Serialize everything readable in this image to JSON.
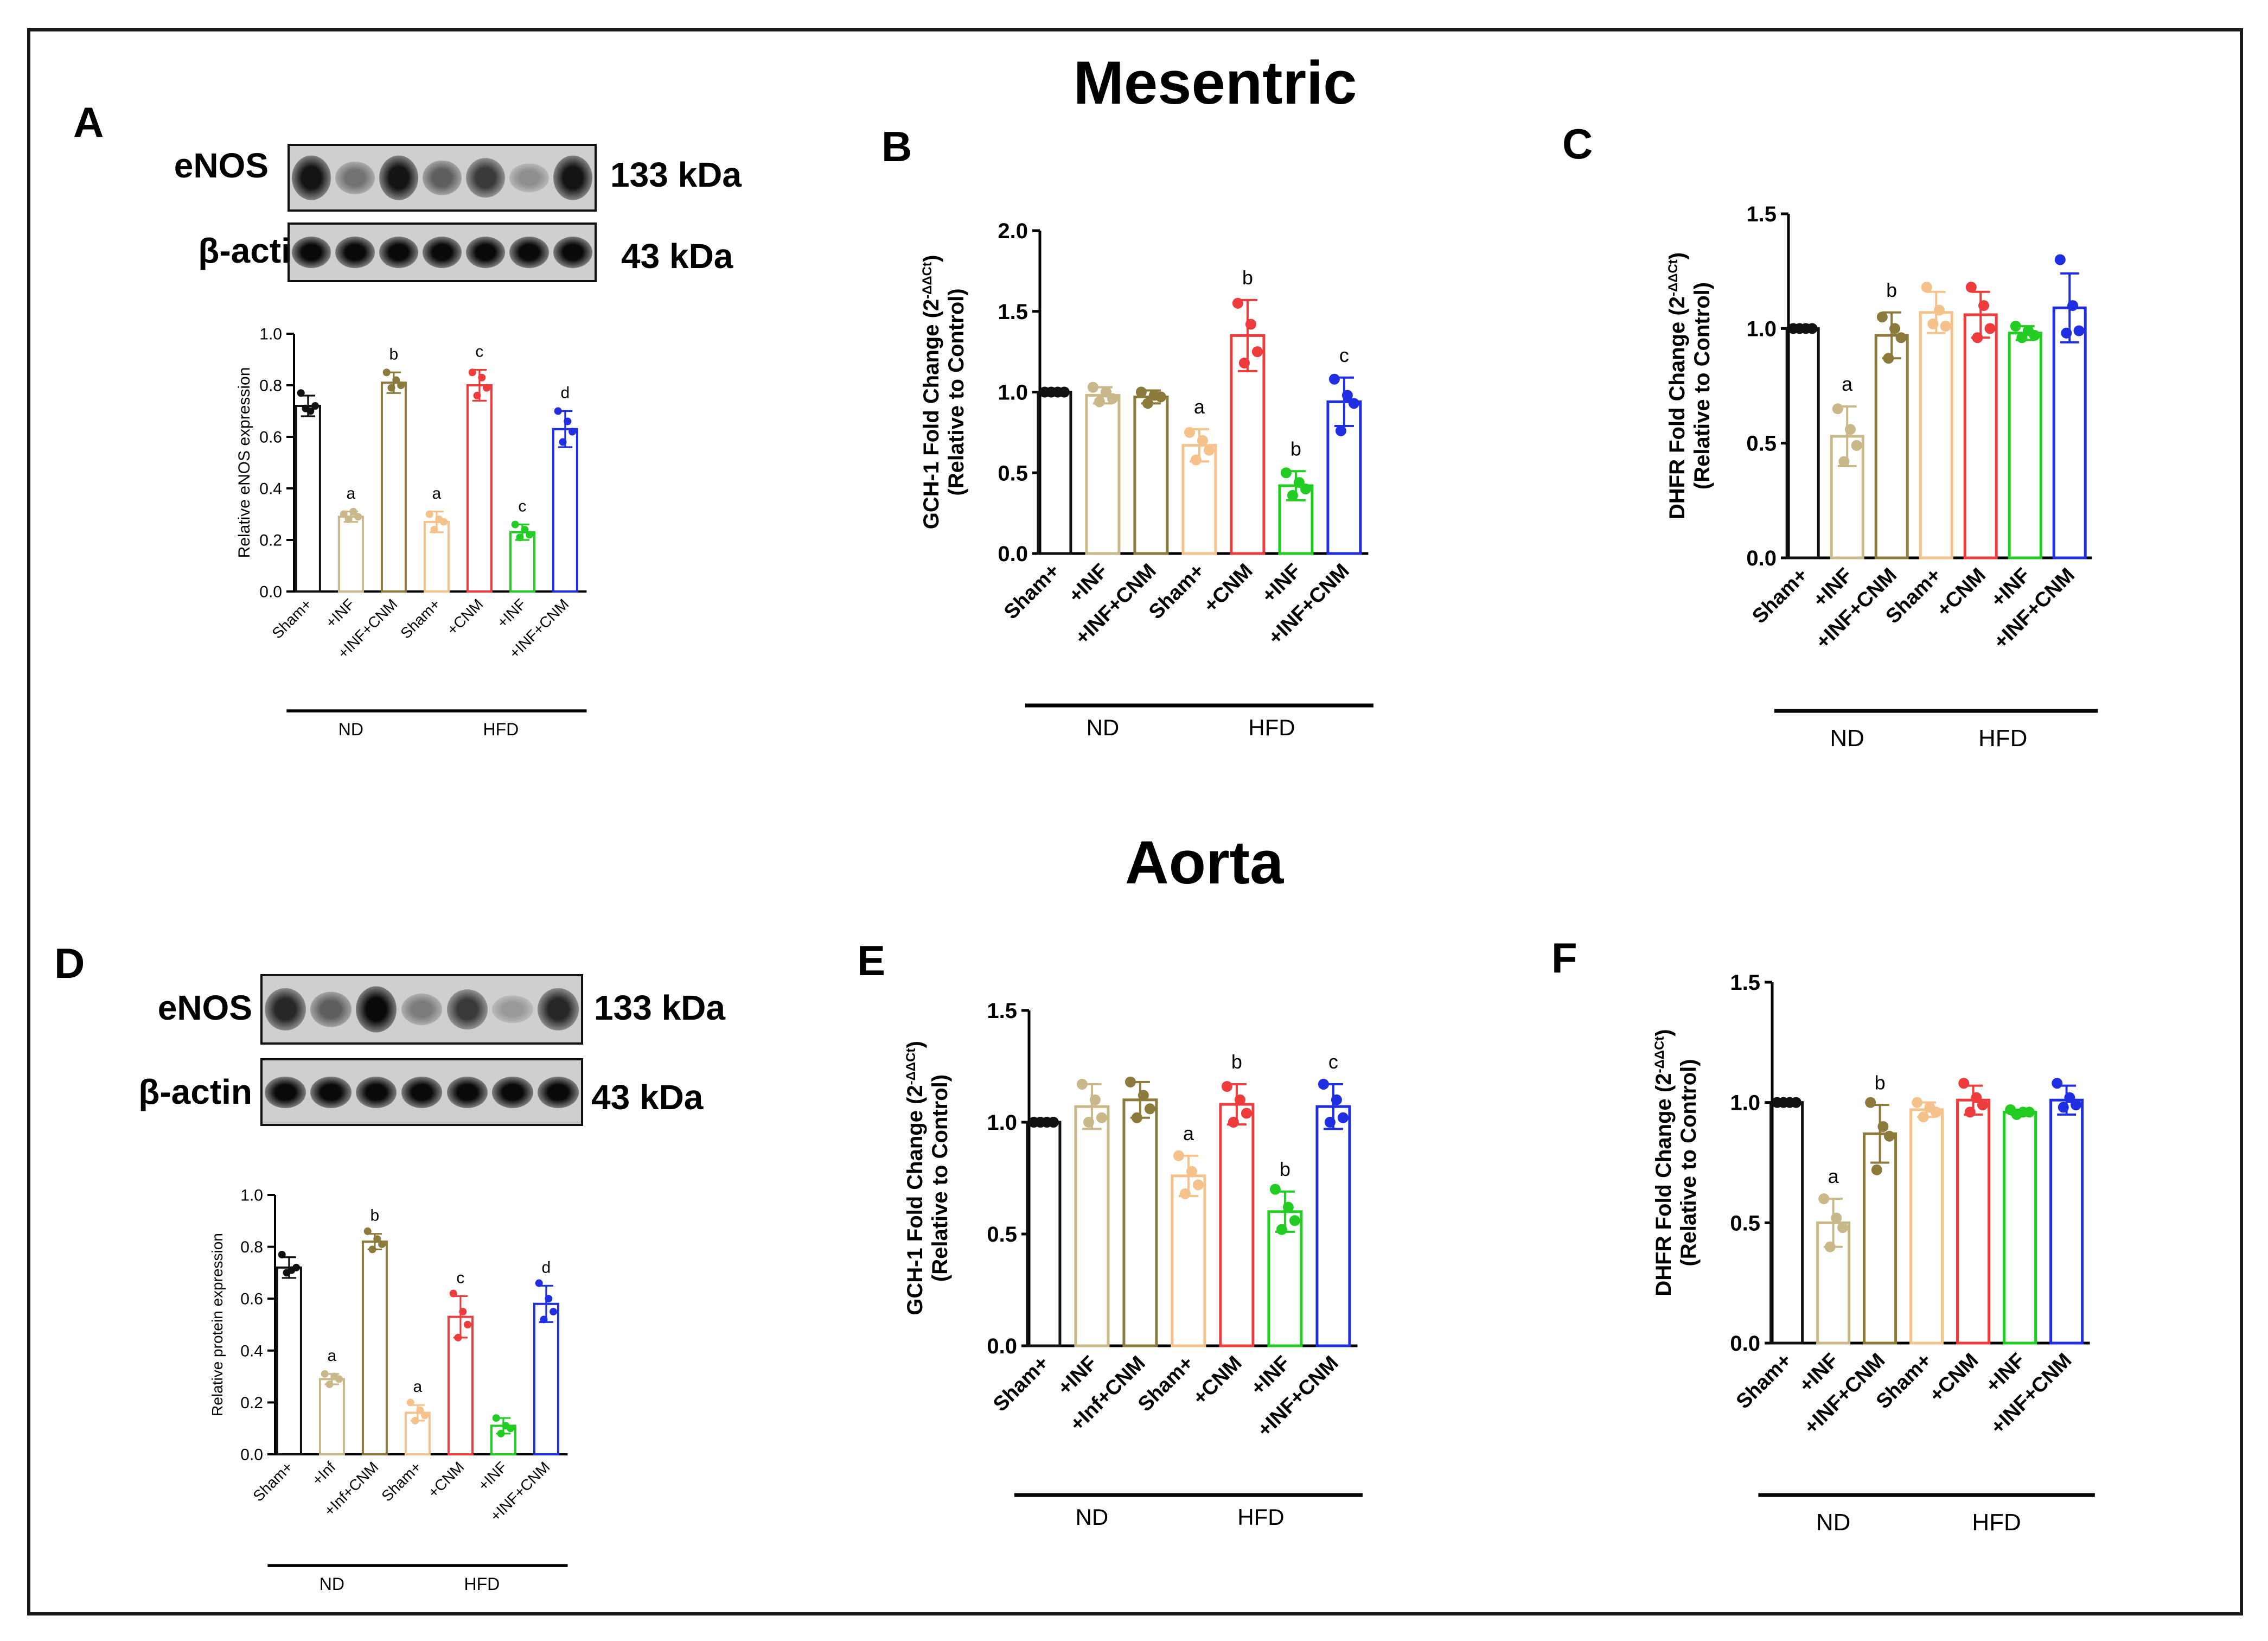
{
  "section_titles": {
    "mesenteric": "Mesentric",
    "aorta": "Aorta"
  },
  "panel_letters": {
    "A": "A",
    "B": "B",
    "C": "C",
    "D": "D",
    "E": "E",
    "F": "F"
  },
  "colors": [
    "#111111",
    "#c8b88a",
    "#8c7a3c",
    "#f5c28c",
    "#ee3b3b",
    "#22cc22",
    "#1e2ee0"
  ],
  "blots": {
    "A": {
      "label_top": "eNOS",
      "kda_top": "133 kDa",
      "label_bottom": "β-actin",
      "kda_bottom": "43 kDa",
      "enos_band_intensity": [
        0.95,
        0.45,
        0.95,
        0.55,
        0.75,
        0.3,
        0.95
      ]
    },
    "D": {
      "label_top": "eNOS",
      "kda_top": "133 kDa",
      "label_bottom": "β-actin",
      "kda_bottom": "43 kDa",
      "enos_band_intensity": [
        0.85,
        0.55,
        1.0,
        0.4,
        0.75,
        0.25,
        0.85
      ]
    }
  },
  "chart_data": [
    {
      "id": "A",
      "type": "bar",
      "title": "",
      "ylabel": "Relative eNOS expression",
      "xlabel": "",
      "ylim": [
        0,
        1.0
      ],
      "yticks": [
        "0.0",
        "0.2",
        "0.4",
        "0.6",
        "0.8",
        "1.0"
      ],
      "categories": [
        "Sham+",
        "+INF",
        "+INF+CNM",
        "Sham+",
        "+CNM",
        "+INF",
        "+INF+CNM"
      ],
      "values": [
        0.72,
        0.29,
        0.81,
        0.27,
        0.8,
        0.23,
        0.63
      ],
      "errors": [
        0.04,
        0.02,
        0.04,
        0.04,
        0.06,
        0.03,
        0.07
      ],
      "points": [
        [
          0.77,
          0.71,
          0.7,
          0.72
        ],
        [
          0.3,
          0.28,
          0.31,
          0.29
        ],
        [
          0.85,
          0.79,
          0.82,
          0.8
        ],
        [
          0.3,
          0.24,
          0.28,
          0.27
        ],
        [
          0.85,
          0.76,
          0.83,
          0.79
        ],
        [
          0.26,
          0.21,
          0.24,
          0.22
        ],
        [
          0.7,
          0.58,
          0.66,
          0.62
        ]
      ],
      "annotations": [
        "",
        "a",
        "b",
        "a",
        "c",
        "c",
        "d"
      ],
      "groups": [
        {
          "label": "ND",
          "from": 0,
          "to": 2
        },
        {
          "label": "HFD",
          "from": 3,
          "to": 6
        }
      ]
    },
    {
      "id": "B",
      "type": "bar",
      "title": "",
      "ylabel_line1": "GCH-1 Fold Change (2",
      "ylabel_sup": "-ΔΔCt",
      "ylabel_close": ")",
      "ylabel_line2": "(Relative to Control)",
      "ylim": [
        0,
        2.0
      ],
      "yticks": [
        "0.0",
        "0.5",
        "1.0",
        "1.5",
        "2.0"
      ],
      "categories": [
        "Sham+",
        "+INF",
        "+INF+CNM",
        "Sham+",
        "+CNM",
        "+INF",
        "+INF+CNM"
      ],
      "values": [
        1.0,
        0.98,
        0.97,
        0.67,
        1.35,
        0.42,
        0.94
      ],
      "errors": [
        0.0,
        0.05,
        0.04,
        0.1,
        0.22,
        0.09,
        0.15
      ],
      "points": [
        [
          1.0,
          1.0,
          1.0,
          1.0
        ],
        [
          1.03,
          0.94,
          1.0,
          0.96
        ],
        [
          1.0,
          0.93,
          0.98,
          0.97
        ],
        [
          0.75,
          0.58,
          0.7,
          0.64
        ],
        [
          1.55,
          1.18,
          1.42,
          1.25
        ],
        [
          0.5,
          0.36,
          0.44,
          0.4
        ],
        [
          1.08,
          0.76,
          0.98,
          0.93
        ]
      ],
      "annotations": [
        "",
        "",
        "",
        "a",
        "b",
        "b",
        "c"
      ],
      "groups": [
        {
          "label": "ND",
          "from": 0,
          "to": 2
        },
        {
          "label": "HFD",
          "from": 3,
          "to": 6
        }
      ]
    },
    {
      "id": "C",
      "type": "bar",
      "title": "",
      "ylabel_line1": "DHFR Fold Change (2",
      "ylabel_sup": "-ΔΔCt",
      "ylabel_close": ")",
      "ylabel_line2": "(Relative to Control)",
      "ylim": [
        0,
        1.5
      ],
      "yticks": [
        "0.0",
        "0.5",
        "1.0",
        "1.5"
      ],
      "categories": [
        "Sham+",
        "+INF",
        "+INF+CNM",
        "Sham+",
        "+CNM",
        "+INF",
        "+INF+CNM"
      ],
      "values": [
        1.0,
        0.53,
        0.97,
        1.07,
        1.06,
        0.98,
        1.09
      ],
      "errors": [
        0.0,
        0.13,
        0.1,
        0.09,
        0.1,
        0.03,
        0.15
      ],
      "points": [
        [
          1.0,
          1.0,
          1.0,
          1.0
        ],
        [
          0.65,
          0.42,
          0.56,
          0.49
        ],
        [
          1.05,
          0.87,
          1.0,
          0.96
        ],
        [
          1.18,
          1.02,
          1.08,
          1.01
        ],
        [
          1.18,
          0.96,
          1.1,
          1.0
        ],
        [
          1.01,
          0.96,
          0.99,
          0.97
        ],
        [
          1.3,
          0.98,
          1.1,
          0.99
        ]
      ],
      "annotations": [
        "",
        "a",
        "b",
        "",
        "",
        "",
        ""
      ],
      "groups": [
        {
          "label": "ND",
          "from": 0,
          "to": 2
        },
        {
          "label": "HFD",
          "from": 3,
          "to": 6
        }
      ]
    },
    {
      "id": "D",
      "type": "bar",
      "title": "",
      "ylabel": "Relative protein expression",
      "xlabel": "",
      "ylim": [
        0,
        1.0
      ],
      "yticks": [
        "0.0",
        "0.2",
        "0.4",
        "0.6",
        "0.8",
        "1.0"
      ],
      "categories": [
        "Sham+",
        "+Inf",
        "+Inf+CNM",
        "Sham+",
        "+CNM",
        "+INF",
        "+INF+CNM"
      ],
      "values": [
        0.72,
        0.29,
        0.82,
        0.16,
        0.53,
        0.11,
        0.58
      ],
      "errors": [
        0.04,
        0.02,
        0.03,
        0.03,
        0.08,
        0.03,
        0.07
      ],
      "points": [
        [
          0.77,
          0.7,
          0.71,
          0.72
        ],
        [
          0.31,
          0.27,
          0.3,
          0.29
        ],
        [
          0.86,
          0.79,
          0.83,
          0.81
        ],
        [
          0.2,
          0.13,
          0.17,
          0.15
        ],
        [
          0.62,
          0.45,
          0.55,
          0.5
        ],
        [
          0.14,
          0.08,
          0.11,
          0.1
        ],
        [
          0.66,
          0.52,
          0.6,
          0.55
        ]
      ],
      "annotations": [
        "",
        "a",
        "b",
        "a",
        "c",
        "",
        "d"
      ],
      "groups": [
        {
          "label": "ND",
          "from": 0,
          "to": 2
        },
        {
          "label": "HFD",
          "from": 3,
          "to": 6
        }
      ]
    },
    {
      "id": "E",
      "type": "bar",
      "title": "",
      "ylabel_line1": "GCH-1 Fold Change (2",
      "ylabel_sup": "-ΔΔCt",
      "ylabel_close": ")",
      "ylabel_line2": "(Relative to Control)",
      "ylim": [
        0,
        1.5
      ],
      "yticks": [
        "0.0",
        "0.5",
        "1.0",
        "1.5"
      ],
      "categories": [
        "Sham+",
        "+INF",
        "+Inf+CNM",
        "Sham+",
        "+CNM",
        "+INF",
        "+INF+CNM"
      ],
      "values": [
        1.0,
        1.07,
        1.1,
        0.76,
        1.08,
        0.6,
        1.07
      ],
      "errors": [
        0.0,
        0.1,
        0.08,
        0.09,
        0.09,
        0.09,
        0.1
      ],
      "points": [
        [
          1.0,
          1.0,
          1.0,
          1.0
        ],
        [
          1.17,
          1.0,
          1.1,
          1.02
        ],
        [
          1.18,
          1.02,
          1.12,
          1.06
        ],
        [
          0.85,
          0.68,
          0.78,
          0.72
        ],
        [
          1.16,
          1.0,
          1.1,
          1.04
        ],
        [
          0.7,
          0.52,
          0.62,
          0.56
        ],
        [
          1.17,
          1.0,
          1.1,
          1.02
        ]
      ],
      "annotations": [
        "",
        "",
        "",
        "a",
        "b",
        "b",
        "c"
      ],
      "groups": [
        {
          "label": "ND",
          "from": 0,
          "to": 2
        },
        {
          "label": "HFD",
          "from": 3,
          "to": 6
        }
      ]
    },
    {
      "id": "F",
      "type": "bar",
      "title": "",
      "ylabel_line1": "DHFR Fold Change (2",
      "ylabel_sup": "-ΔΔCt",
      "ylabel_close": ")",
      "ylabel_line2": "(Relative to Control)",
      "ylim": [
        0,
        1.5
      ],
      "yticks": [
        "0.0",
        "0.5",
        "1.0",
        "1.5"
      ],
      "categories": [
        "Sham+",
        "+INF",
        "+INF+CNM",
        "Sham+",
        "+CNM",
        "+INF",
        "+INF+CNM"
      ],
      "values": [
        1.0,
        0.5,
        0.87,
        0.97,
        1.01,
        0.96,
        1.01
      ],
      "errors": [
        0.0,
        0.1,
        0.12,
        0.03,
        0.06,
        0.01,
        0.06
      ],
      "points": [
        [
          1.0,
          1.0,
          1.0,
          1.0
        ],
        [
          0.6,
          0.4,
          0.52,
          0.48
        ],
        [
          1.0,
          0.72,
          0.9,
          0.86
        ],
        [
          1.0,
          0.94,
          0.98,
          0.96
        ],
        [
          1.08,
          0.96,
          1.02,
          0.99
        ],
        [
          0.97,
          0.95,
          0.96,
          0.96
        ],
        [
          1.08,
          0.98,
          1.02,
          0.99
        ]
      ],
      "annotations": [
        "",
        "a",
        "b",
        "",
        "",
        "",
        ""
      ],
      "groups": [
        {
          "label": "ND",
          "from": 0,
          "to": 2
        },
        {
          "label": "HFD",
          "from": 3,
          "to": 6
        }
      ]
    }
  ]
}
